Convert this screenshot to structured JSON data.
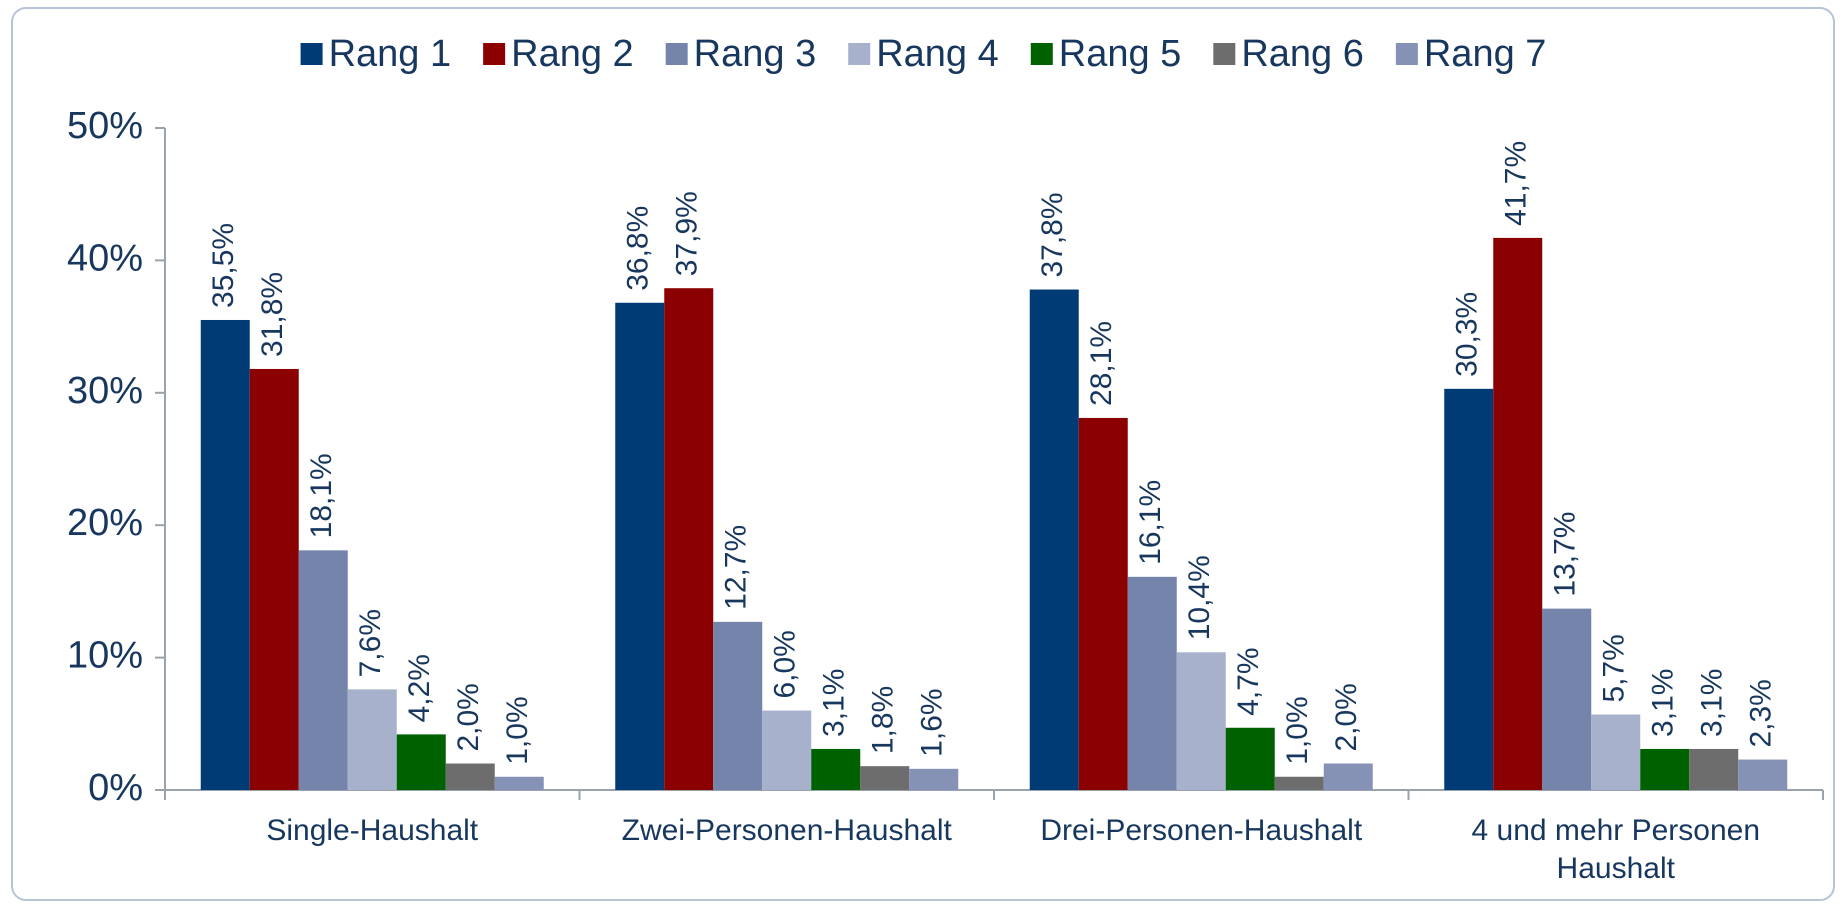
{
  "chart_data": {
    "type": "bar",
    "categories": [
      "Single-Haushalt",
      "Zwei-Personen-Haushalt",
      "Drei-Personen-Haushalt",
      "4 und mehr Personen Haushalt"
    ],
    "series": [
      {
        "name": "Rang 1",
        "color": "#003b75",
        "values": [
          35.5,
          36.8,
          37.8,
          30.3
        ],
        "value_labels": [
          "35,5%",
          "36,8%",
          "37,8%",
          "30,3%"
        ]
      },
      {
        "name": "Rang 2",
        "color": "#8b0000",
        "values": [
          31.8,
          37.9,
          28.1,
          41.7
        ],
        "value_labels": [
          "31,8%",
          "37,9%",
          "28,1%",
          "41,7%"
        ]
      },
      {
        "name": "Rang 3",
        "color": "#7484aa",
        "values": [
          18.1,
          12.7,
          16.1,
          13.7
        ],
        "value_labels": [
          "18,1%",
          "12,7%",
          "16,1%",
          "13,7%"
        ]
      },
      {
        "name": "Rang 4",
        "color": "#a8b1cb",
        "values": [
          7.6,
          6.0,
          10.4,
          5.7
        ],
        "value_labels": [
          "7,6%",
          "6,0%",
          "10,4%",
          "5,7%"
        ]
      },
      {
        "name": "Rang 5",
        "color": "#006100",
        "values": [
          4.2,
          3.1,
          4.7,
          3.1
        ],
        "value_labels": [
          "4,2%",
          "3,1%",
          "4,7%",
          "3,1%"
        ]
      },
      {
        "name": "Rang 6",
        "color": "#6d6d6d",
        "values": [
          2.0,
          1.8,
          1.0,
          3.1
        ],
        "value_labels": [
          "2,0%",
          "1,8%",
          "1,0%",
          "3,1%"
        ]
      },
      {
        "name": "Rang 7",
        "color": "#8592b6",
        "values": [
          1.0,
          1.6,
          2.0,
          2.3
        ],
        "value_labels": [
          "1,0%",
          "1,6%",
          "2,0%",
          "2,3%"
        ]
      }
    ],
    "ylim": [
      0,
      50
    ],
    "yticks": [
      {
        "value": 0,
        "label": "0%"
      },
      {
        "value": 10,
        "label": "10%"
      },
      {
        "value": 20,
        "label": "20%"
      },
      {
        "value": 30,
        "label": "30%"
      },
      {
        "value": 40,
        "label": "40%"
      },
      {
        "value": 50,
        "label": "50%"
      }
    ],
    "legend": "top"
  }
}
